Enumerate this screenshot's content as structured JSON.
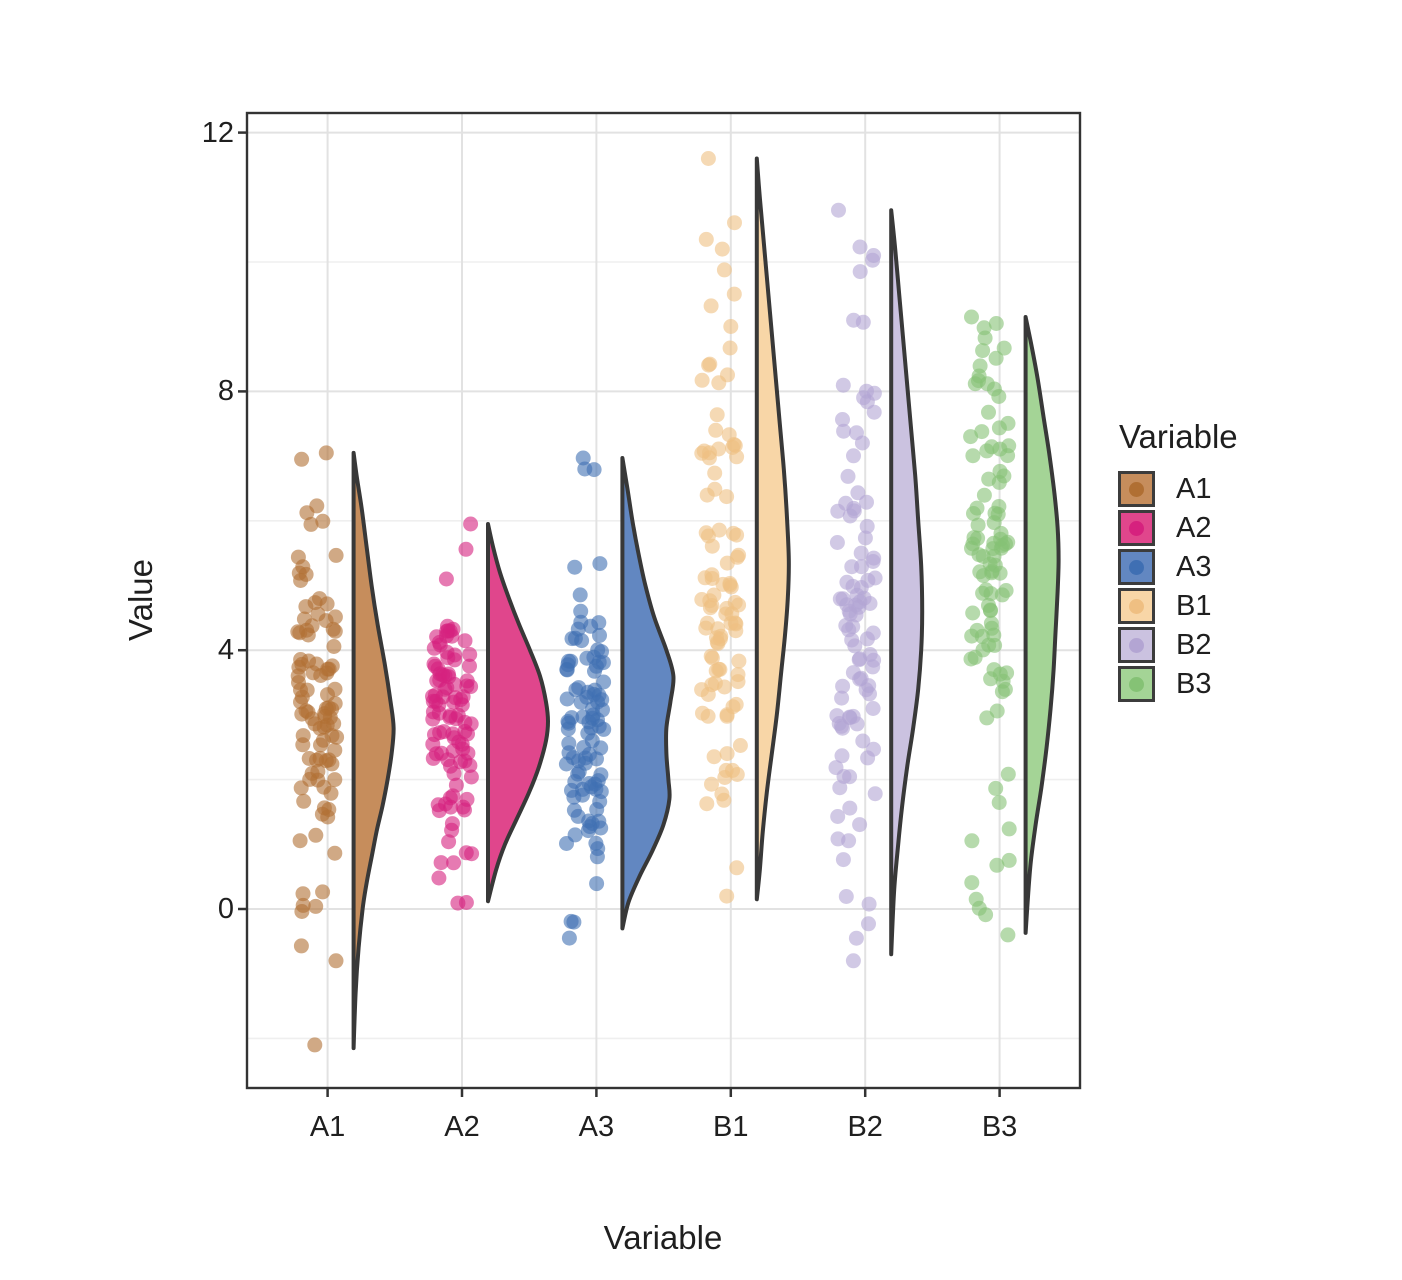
{
  "chart_data": {
    "type": "raincloud-halfviolin-jitter",
    "title": "",
    "xlabel": "Variable",
    "ylabel": "Value",
    "x_categories": [
      "A1",
      "A2",
      "A3",
      "B1",
      "B2",
      "B3"
    ],
    "y_ticks": [
      0,
      4,
      8,
      12
    ],
    "y_minor_gridlines": [
      -2,
      2,
      6,
      10
    ],
    "ylim": [
      -2.8,
      12.35
    ],
    "grid": "on",
    "legend_position": "right",
    "legend_title": "Variable",
    "outline_color": "#383838",
    "major_grid_color": "#e2e2e2",
    "minor_grid_color": "#efefef",
    "axis_text_color": "#1f1f1f",
    "series": [
      {
        "name": "A1",
        "n": 100,
        "mean": 2.8,
        "sd": 1.7,
        "min": -2.2,
        "max": 7.05,
        "outliers": [
          7.05,
          6.95,
          -0.8,
          -2.1
        ],
        "fill": "#C68D5C",
        "point_color": "#B06F33",
        "density": [
          [
            7.05,
            0
          ],
          [
            6.7,
            3
          ],
          [
            6.2,
            8
          ],
          [
            5.6,
            13
          ],
          [
            5.0,
            18
          ],
          [
            4.4,
            24
          ],
          [
            3.8,
            31
          ],
          [
            3.2,
            37
          ],
          [
            2.8,
            40
          ],
          [
            2.4,
            38
          ],
          [
            2.0,
            34
          ],
          [
            1.6,
            29
          ],
          [
            1.2,
            23
          ],
          [
            0.8,
            18
          ],
          [
            0.4,
            13
          ],
          [
            0.0,
            9
          ],
          [
            -0.6,
            5
          ],
          [
            -1.3,
            2
          ],
          [
            -2.15,
            0
          ]
        ]
      },
      {
        "name": "A2",
        "n": 100,
        "mean": 2.9,
        "sd": 1.15,
        "min": 0.05,
        "max": 5.95,
        "outliers": [
          5.95,
          0.1
        ],
        "fill": "#E0468C",
        "point_color": "#D6217E",
        "density": [
          [
            5.95,
            0
          ],
          [
            5.6,
            5
          ],
          [
            5.2,
            12
          ],
          [
            4.8,
            21
          ],
          [
            4.4,
            31
          ],
          [
            4.0,
            42
          ],
          [
            3.6,
            52
          ],
          [
            3.2,
            58
          ],
          [
            2.9,
            60
          ],
          [
            2.6,
            58
          ],
          [
            2.2,
            51
          ],
          [
            1.8,
            41
          ],
          [
            1.4,
            29
          ],
          [
            1.0,
            17
          ],
          [
            0.6,
            8
          ],
          [
            0.12,
            0
          ]
        ]
      },
      {
        "name": "A3",
        "n": 100,
        "modes": [
          {
            "mean": 3.6,
            "sd": 0.95,
            "weight": 0.6
          },
          {
            "mean": 1.8,
            "sd": 0.7,
            "weight": 0.4
          }
        ],
        "mean": 2.9,
        "sd": 1.5,
        "min": -0.45,
        "max": 6.97,
        "outliers": [
          6.97,
          6.8,
          -0.45
        ],
        "fill": "#6287C1",
        "point_color": "#3F6FB3",
        "density": [
          [
            6.97,
            0
          ],
          [
            6.5,
            5
          ],
          [
            6.0,
            10
          ],
          [
            5.5,
            16
          ],
          [
            5.0,
            23
          ],
          [
            4.5,
            32
          ],
          [
            4.0,
            44
          ],
          [
            3.6,
            51
          ],
          [
            3.2,
            48
          ],
          [
            2.8,
            44
          ],
          [
            2.4,
            44
          ],
          [
            2.0,
            46
          ],
          [
            1.7,
            47
          ],
          [
            1.3,
            41
          ],
          [
            0.9,
            30
          ],
          [
            0.5,
            17
          ],
          [
            0.1,
            6
          ],
          [
            -0.3,
            0
          ]
        ]
      },
      {
        "name": "B1",
        "n": 100,
        "mean": 5.1,
        "sd": 2.45,
        "min": 0.15,
        "max": 11.6,
        "outliers": [
          11.6,
          10.35,
          10.2,
          0.2
        ],
        "fill": "#F8D6A7",
        "point_color": "#EFBF82",
        "density": [
          [
            11.6,
            0
          ],
          [
            11.0,
            3
          ],
          [
            10.3,
            7
          ],
          [
            9.6,
            11
          ],
          [
            8.9,
            15
          ],
          [
            8.2,
            19
          ],
          [
            7.5,
            23
          ],
          [
            6.8,
            27
          ],
          [
            6.1,
            30
          ],
          [
            5.4,
            32
          ],
          [
            4.8,
            31
          ],
          [
            4.2,
            28
          ],
          [
            3.6,
            24
          ],
          [
            3.0,
            20
          ],
          [
            2.4,
            15
          ],
          [
            1.8,
            10
          ],
          [
            1.2,
            6
          ],
          [
            0.6,
            3
          ],
          [
            0.15,
            0
          ]
        ]
      },
      {
        "name": "B2",
        "n": 100,
        "mean": 4.8,
        "sd": 2.25,
        "min": -0.8,
        "max": 10.8,
        "outliers": [
          10.8,
          10.1,
          9.1,
          -0.8
        ],
        "fill": "#CBC2E0",
        "point_color": "#B3A5D3",
        "density": [
          [
            10.8,
            0
          ],
          [
            10.2,
            4
          ],
          [
            9.5,
            8
          ],
          [
            8.8,
            12
          ],
          [
            8.1,
            16
          ],
          [
            7.4,
            20
          ],
          [
            6.7,
            24
          ],
          [
            6.0,
            27
          ],
          [
            5.3,
            30
          ],
          [
            4.6,
            31
          ],
          [
            4.0,
            30
          ],
          [
            3.4,
            27
          ],
          [
            2.8,
            22
          ],
          [
            2.2,
            16
          ],
          [
            1.6,
            11
          ],
          [
            1.0,
            7
          ],
          [
            0.3,
            3
          ],
          [
            -0.7,
            0
          ]
        ]
      },
      {
        "name": "B3",
        "n": 100,
        "mean": 4.9,
        "sd": 2.05,
        "min": -0.4,
        "max": 9.15,
        "outliers": [
          9.15,
          9.05,
          -0.4,
          0.15
        ],
        "fill": "#A4D496",
        "point_color": "#85C275",
        "density": [
          [
            9.15,
            0
          ],
          [
            8.7,
            6
          ],
          [
            8.2,
            12
          ],
          [
            7.6,
            18
          ],
          [
            7.0,
            24
          ],
          [
            6.4,
            29
          ],
          [
            5.9,
            32
          ],
          [
            5.4,
            33
          ],
          [
            4.9,
            32
          ],
          [
            4.3,
            30
          ],
          [
            3.7,
            28
          ],
          [
            3.1,
            25
          ],
          [
            2.5,
            21
          ],
          [
            1.9,
            16
          ],
          [
            1.3,
            10
          ],
          [
            0.7,
            5
          ],
          [
            0.1,
            2
          ],
          [
            -0.37,
            0
          ]
        ]
      }
    ]
  }
}
